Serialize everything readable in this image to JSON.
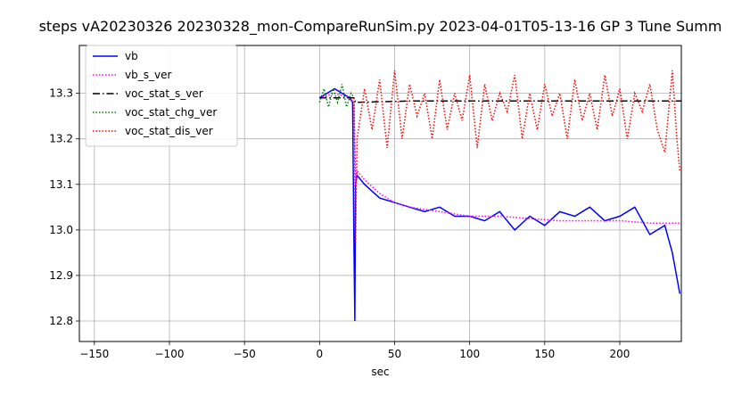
{
  "chart_data": {
    "type": "line",
    "title": "steps vA20230326 20230328_mon-CompareRunSim.py   2023-04-01T05-13-16 GP 3 Tune Summ",
    "xlabel": "sec",
    "ylabel": "",
    "xlim": [
      -160,
      241
    ],
    "ylim": [
      12.755,
      13.405
    ],
    "xticks": [
      -150,
      -100,
      -50,
      0,
      50,
      100,
      150,
      200
    ],
    "yticks": [
      12.8,
      12.9,
      13.0,
      13.1,
      13.2,
      13.3
    ],
    "grid": true,
    "legend_position": "top-left",
    "colors": {
      "vb": "#0000ff",
      "vb_s_ver": "#ff00ff",
      "voc_stat_s_ver": "#000000",
      "voc_stat_chg_ver": "#008000",
      "voc_stat_dis_ver": "#ff0000"
    },
    "series": [
      {
        "name": "vb",
        "style": "solid",
        "color": "#0000ff",
        "x": [
          0,
          5,
          10,
          15,
          20,
          22,
          23,
          23.5,
          24,
          25,
          30,
          40,
          50,
          60,
          70,
          80,
          90,
          100,
          110,
          120,
          130,
          140,
          150,
          160,
          170,
          180,
          190,
          200,
          210,
          220,
          230,
          235,
          240
        ],
        "y": [
          13.29,
          13.3,
          13.31,
          13.3,
          13.29,
          13.28,
          12.95,
          12.8,
          13.1,
          13.12,
          13.1,
          13.07,
          13.06,
          13.05,
          13.04,
          13.05,
          13.03,
          13.03,
          13.02,
          13.04,
          13.0,
          13.03,
          13.01,
          13.04,
          13.03,
          13.05,
          13.02,
          13.03,
          13.05,
          12.99,
          13.01,
          12.95,
          12.86
        ]
      },
      {
        "name": "vb_s_ver",
        "style": "dotted",
        "color": "#ff00ff",
        "x": [
          0,
          10,
          20,
          23,
          24,
          25,
          30,
          40,
          50,
          60,
          80,
          100,
          120,
          140,
          160,
          180,
          200,
          220,
          240
        ],
        "y": [
          13.29,
          13.3,
          13.29,
          13.28,
          13.1,
          13.13,
          13.11,
          13.08,
          13.06,
          13.05,
          13.04,
          13.03,
          13.03,
          13.025,
          13.02,
          13.02,
          13.02,
          13.015,
          13.015
        ]
      },
      {
        "name": "voc_stat_s_ver",
        "style": "dashdot",
        "color": "#000000",
        "x": [
          0,
          23,
          24,
          60,
          120,
          180,
          241
        ],
        "y": [
          13.29,
          13.29,
          13.28,
          13.283,
          13.283,
          13.283,
          13.283
        ]
      },
      {
        "name": "voc_stat_chg_ver",
        "style": "dotted",
        "color": "#008000",
        "x": [
          0,
          3,
          6,
          9,
          12,
          15,
          18,
          21,
          23
        ],
        "y": [
          13.28,
          13.31,
          13.27,
          13.31,
          13.28,
          13.32,
          13.27,
          13.3,
          13.29
        ]
      },
      {
        "name": "voc_stat_dis_ver",
        "style": "dotted",
        "color": "#ff0000",
        "x": [
          23,
          24,
          25,
          30,
          35,
          40,
          45,
          50,
          55,
          60,
          65,
          70,
          75,
          80,
          85,
          90,
          95,
          100,
          105,
          110,
          115,
          120,
          125,
          130,
          135,
          140,
          145,
          150,
          155,
          160,
          165,
          170,
          175,
          180,
          185,
          190,
          195,
          200,
          205,
          210,
          215,
          220,
          225,
          230,
          235,
          238,
          240
        ],
        "y": [
          13.29,
          12.97,
          13.2,
          13.31,
          13.22,
          13.33,
          13.18,
          13.35,
          13.2,
          13.32,
          13.25,
          13.3,
          13.2,
          13.33,
          13.22,
          13.3,
          13.24,
          13.34,
          13.18,
          13.32,
          13.24,
          13.3,
          13.26,
          13.34,
          13.2,
          13.3,
          13.22,
          13.32,
          13.25,
          13.3,
          13.2,
          13.33,
          13.24,
          13.3,
          13.22,
          13.34,
          13.25,
          13.31,
          13.2,
          13.3,
          13.26,
          13.32,
          13.22,
          13.17,
          13.35,
          13.2,
          13.13
        ]
      }
    ]
  }
}
